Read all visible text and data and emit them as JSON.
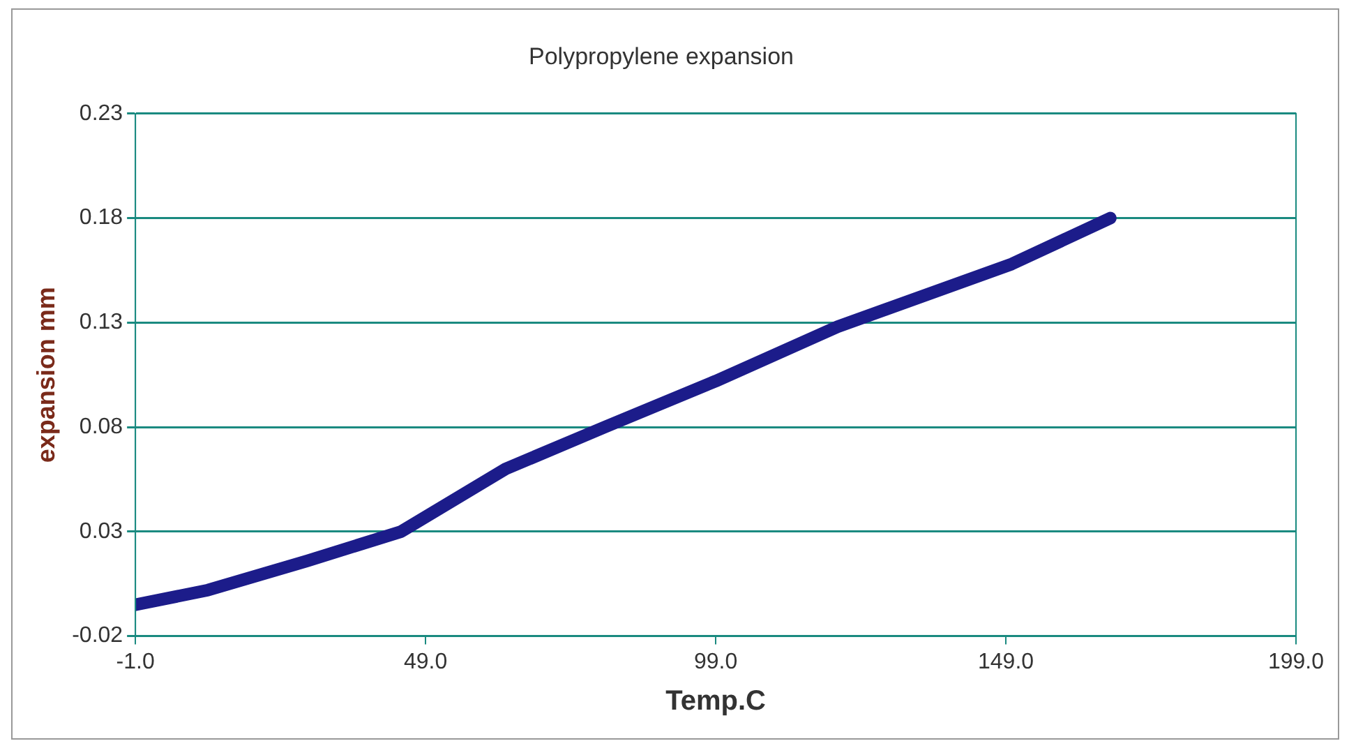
{
  "chart_data": {
    "type": "line",
    "title": "Polypropylene expansion",
    "xlabel": "Temp.C",
    "ylabel": "expansion mm",
    "x": [
      -1,
      11.5,
      28.6,
      44.8,
      62.8,
      79.9,
      99,
      120,
      150,
      167
    ],
    "series": [
      {
        "color": "#1c1c8a",
        "values": [
          -0.005,
          0.002,
          0.016,
          0.03,
          0.06,
          0.08,
          0.102,
          0.128,
          0.158,
          0.18
        ]
      }
    ],
    "xlim": [
      -1,
      199
    ],
    "xticks": [
      {
        "value": -1,
        "label": "-1.0"
      },
      {
        "value": 49,
        "label": "49.0"
      },
      {
        "value": 99,
        "label": "99.0"
      },
      {
        "value": 149,
        "label": "149.0"
      },
      {
        "value": 199,
        "label": "199.0"
      }
    ],
    "ylim": [
      -0.02,
      0.23
    ],
    "yticks": [
      -0.02,
      0.03,
      0.08,
      0.13,
      0.18,
      0.23
    ],
    "grid": "y",
    "legend": false,
    "marker": "none",
    "line_style": "solid"
  }
}
